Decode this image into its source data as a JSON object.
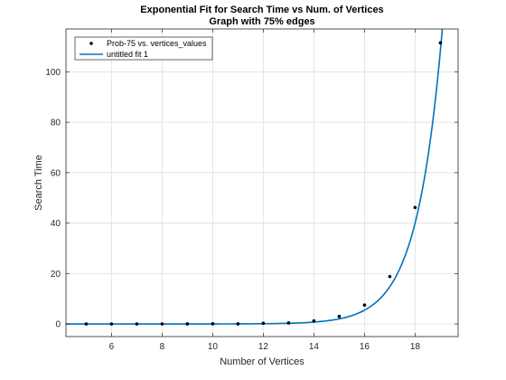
{
  "chart_data": {
    "type": "scatter",
    "title": "Exponential Fit for Search Time vs Num. of Vertices",
    "subtitle": "Graph with 75% edges",
    "xlabel": "Number of Vertices",
    "ylabel": "Search Time",
    "xlim": [
      4.2,
      19.7
    ],
    "ylim": [
      -5,
      117
    ],
    "xticks": [
      6,
      8,
      10,
      12,
      14,
      16,
      18
    ],
    "yticks": [
      0,
      20,
      40,
      60,
      80,
      100
    ],
    "grid": true,
    "legend_position": "top-left",
    "series": [
      {
        "name": "Prob-75 vs. vertices_values",
        "kind": "points",
        "color": "#000000",
        "x": [
          5,
          6,
          7,
          8,
          9,
          10,
          11,
          12,
          13,
          14,
          15,
          16,
          17,
          18,
          19
        ],
        "y": [
          0.002,
          0.005,
          0.01,
          0.02,
          0.04,
          0.08,
          0.03,
          0.3,
          0.4,
          1.2,
          3.0,
          7.5,
          18.8,
          46.2,
          111.5
        ]
      },
      {
        "name": "untitled fit 1",
        "kind": "fit",
        "color": "#0072BD",
        "model": "exp",
        "a": 6.53e-07,
        "b": 0.9962
      }
    ]
  }
}
